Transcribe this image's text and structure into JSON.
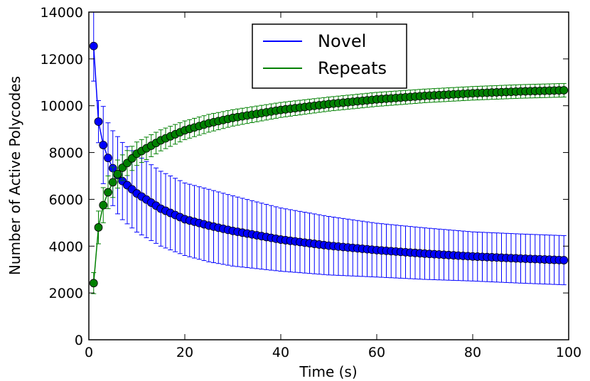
{
  "chart_data": {
    "type": "line",
    "title": "",
    "xlabel": "Time (s)",
    "ylabel": "Number of Active Polycodes",
    "xlim": [
      0,
      100
    ],
    "ylim": [
      0,
      14000
    ],
    "xticks": [
      0,
      20,
      40,
      60,
      80,
      100
    ],
    "yticks": [
      0,
      2000,
      4000,
      6000,
      8000,
      10000,
      12000,
      14000
    ],
    "xtick_labels": [
      "0",
      "20",
      "40",
      "60",
      "80",
      "100"
    ],
    "ytick_labels": [
      "0",
      "2000",
      "4000",
      "6000",
      "8000",
      "10000",
      "12000",
      "14000"
    ],
    "grid": false,
    "legend_position": "top-center",
    "x_range": [
      1,
      99
    ],
    "series": [
      {
        "name": "Novel",
        "color": "#0000ff",
        "marker_color": "#0000ff",
        "anchors": [
          [
            1,
            12550,
            1500
          ],
          [
            2,
            9320,
            900
          ],
          [
            3,
            8320,
            1650
          ],
          [
            4,
            7770,
            1500
          ],
          [
            5,
            7330,
            1600
          ],
          [
            6,
            7030,
            1650
          ],
          [
            7,
            6780,
            1650
          ],
          [
            10,
            6250,
            1650
          ],
          [
            15,
            5600,
            1600
          ],
          [
            20,
            5150,
            1550
          ],
          [
            25,
            4880,
            1550
          ],
          [
            30,
            4650,
            1500
          ],
          [
            40,
            4280,
            1350
          ],
          [
            50,
            4020,
            1250
          ],
          [
            60,
            3830,
            1150
          ],
          [
            70,
            3680,
            1100
          ],
          [
            80,
            3560,
            1050
          ],
          [
            90,
            3470,
            1050
          ],
          [
            99,
            3400,
            1050
          ]
        ]
      },
      {
        "name": "Repeats",
        "color": "#008000",
        "marker_color": "#008000",
        "anchors": [
          [
            1,
            2420,
            450
          ],
          [
            2,
            4800,
            700
          ],
          [
            3,
            5750,
            750
          ],
          [
            4,
            6300,
            700
          ],
          [
            5,
            6730,
            650
          ],
          [
            6,
            7080,
            600
          ],
          [
            7,
            7350,
            550
          ],
          [
            10,
            7950,
            500
          ],
          [
            15,
            8520,
            450
          ],
          [
            20,
            8950,
            400
          ],
          [
            25,
            9250,
            380
          ],
          [
            30,
            9480,
            350
          ],
          [
            40,
            9820,
            320
          ],
          [
            50,
            10070,
            300
          ],
          [
            60,
            10270,
            300
          ],
          [
            70,
            10420,
            290
          ],
          [
            80,
            10530,
            290
          ],
          [
            90,
            10610,
            290
          ],
          [
            99,
            10660,
            290
          ]
        ]
      }
    ]
  }
}
